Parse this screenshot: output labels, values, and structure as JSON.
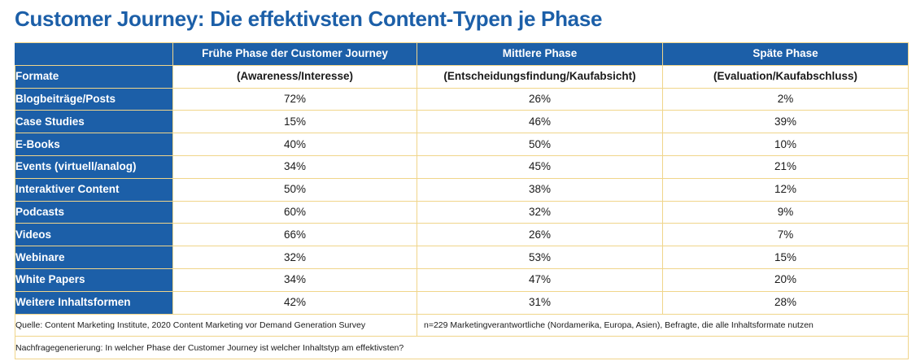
{
  "title": "Customer Journey: Die effektivsten Content-Typen je Phase",
  "chart_data": {
    "type": "table",
    "title": "Customer Journey: Die effektivsten Content-Typen je Phase",
    "columns": [
      {
        "name": "Frühe Phase der Customer Journey",
        "sub": "(Awareness/Interesse)"
      },
      {
        "name": "Mittlere Phase",
        "sub": "(Entscheidungsfindung/Kaufabsicht)"
      },
      {
        "name": "Späte Phase",
        "sub": "(Evaluation/Kaufabschluss)"
      }
    ],
    "row_header": "Formate",
    "rows": [
      {
        "label": "Blogbeiträge/Posts",
        "values": [
          "72%",
          "26%",
          "2%"
        ]
      },
      {
        "label": "Case Studies",
        "values": [
          "15%",
          "46%",
          "39%"
        ]
      },
      {
        "label": "E-Books",
        "values": [
          "40%",
          "50%",
          "10%"
        ]
      },
      {
        "label": "Events (virtuell/analog)",
        "values": [
          "34%",
          "45%",
          "21%"
        ]
      },
      {
        "label": "Interaktiver Content",
        "values": [
          "50%",
          "38%",
          "12%"
        ]
      },
      {
        "label": "Podcasts",
        "values": [
          "60%",
          "32%",
          "9%"
        ]
      },
      {
        "label": "Videos",
        "values": [
          "66%",
          "26%",
          "7%"
        ]
      },
      {
        "label": "Webinare",
        "values": [
          "32%",
          "53%",
          "15%"
        ]
      },
      {
        "label": "White Papers",
        "values": [
          "34%",
          "47%",
          "20%"
        ]
      },
      {
        "label": "Weitere Inhaltsformen",
        "values": [
          "42%",
          "31%",
          "28%"
        ]
      }
    ]
  },
  "footer": {
    "source": "Quelle: Content Marketing Institute, 2020 Content Marketing vor Demand Generation Survey",
    "sample": "n=229 Marketingverantwortliche (Nordamerika, Europa, Asien), Befragte, die alle Inhaltsformate nutzen",
    "question": "Nachfragegenerierung: In welcher Phase der Customer Journey ist welcher Inhaltstyp am effektivsten?"
  },
  "colors": {
    "brand_blue": "#1c5fa8",
    "grid_line": "#f0d58a"
  }
}
